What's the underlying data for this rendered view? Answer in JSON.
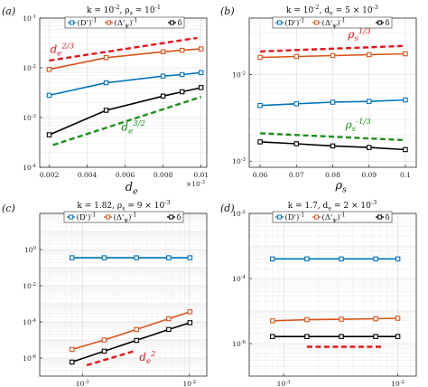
{
  "chart_data": [
    {
      "type": "line",
      "panel": "(a)",
      "title": "k = 10^{-2},  ρ_s = 10^{-1}",
      "xlabel": "d_e",
      "xscale": "linear",
      "yscale": "log",
      "xlim": [
        0.0015,
        0.0103
      ],
      "ylim": [
        0.0001,
        0.1
      ],
      "xticks": [
        "0.002",
        "0.004",
        "0.006",
        "0.008",
        "0.01"
      ],
      "x_exponent": "×10^{-3}",
      "yticks": [
        "10^{-4}",
        "10^{-3}",
        "10^{-2}",
        "10^{-1}"
      ],
      "legend": [
        "(D')^{-1}",
        "(Δ'_{ψ})^{-1}",
        "δ"
      ],
      "series": [
        {
          "name": "(D')^{-1}",
          "color": "#0072BD",
          "x": [
            0.002,
            0.005,
            0.008,
            0.009,
            0.01
          ],
          "y": [
            0.0028,
            0.005,
            0.0068,
            0.0073,
            0.008
          ]
        },
        {
          "name": "(Δ'_{ψ})^{-1}",
          "color": "#D95319",
          "x": [
            0.002,
            0.005,
            0.008,
            0.009,
            0.01
          ],
          "y": [
            0.0093,
            0.016,
            0.021,
            0.0225,
            0.024
          ]
        },
        {
          "name": "δ",
          "color": "#000000",
          "x": [
            0.002,
            0.005,
            0.008,
            0.009,
            0.01
          ],
          "y": [
            0.00045,
            0.0014,
            0.0027,
            0.0033,
            0.004
          ]
        }
      ],
      "guides": [
        {
          "label": "d_e^{2/3}",
          "color": "#E8141C",
          "x": [
            0.002,
            0.0098
          ],
          "y": [
            0.014,
            0.04
          ],
          "label_x": 0.00205,
          "label_y": 0.02
        },
        {
          "label": "d_e^{3/2}",
          "color": "#1C8E1C",
          "x": [
            0.0022,
            0.01
          ],
          "y": [
            0.00028,
            0.0026
          ],
          "label_x": 0.0058,
          "label_y": 0.00055
        }
      ]
    },
    {
      "type": "line",
      "panel": "(b)",
      "title": "k = 10^{-2},  d_e = 5 × 10^{-3}",
      "xlabel": "ρ_s",
      "xscale": "linear",
      "yscale": "log",
      "xlim": [
        0.057,
        0.103
      ],
      "ylim": [
        0.00085,
        0.045
      ],
      "xticks": [
        "0.06",
        "0.07",
        "0.08",
        "0.09",
        "0.1"
      ],
      "yticks": [
        "10^{-3}",
        "10^{-2}"
      ],
      "legend": [
        "(D')^{-1}",
        "(Δ'_{ψ})^{-1}",
        "δ"
      ],
      "series": [
        {
          "name": "(D')^{-1}",
          "color": "#0072BD",
          "x": [
            0.06,
            0.07,
            0.08,
            0.09,
            0.1
          ],
          "y": [
            0.0044,
            0.0046,
            0.0048,
            0.0049,
            0.0051
          ]
        },
        {
          "name": "(Δ'_{ψ})^{-1}",
          "color": "#D95319",
          "x": [
            0.06,
            0.07,
            0.08,
            0.09,
            0.1
          ],
          "y": [
            0.0158,
            0.0162,
            0.0166,
            0.017,
            0.0174
          ]
        },
        {
          "name": "δ",
          "color": "#000000",
          "x": [
            0.06,
            0.07,
            0.08,
            0.09,
            0.1
          ],
          "y": [
            0.00167,
            0.00159,
            0.0015,
            0.00144,
            0.00136
          ]
        }
      ],
      "guides": [
        {
          "label": "ρ_s^{1/3}",
          "color": "#E8141C",
          "x": [
            0.06,
            0.1
          ],
          "y": [
            0.0185,
            0.0215
          ],
          "label_x": 0.0842,
          "label_y": 0.0265
        },
        {
          "label": "ρ_s^{-1/3}",
          "color": "#1C8E1C",
          "x": [
            0.06,
            0.1
          ],
          "y": [
            0.0021,
            0.00175
          ],
          "label_x": 0.0835,
          "label_y": 0.0024
        }
      ]
    },
    {
      "type": "line",
      "panel": "(c)",
      "title": "k = 1.82,  ρ_s = 9 × 10^{-3}",
      "xlabel": "d_e",
      "xscale": "log",
      "yscale": "log",
      "xlim": [
        0.0004,
        0.0145
      ],
      "ylim": [
        1e-07,
        100
      ],
      "xticks": [
        "10^{-3}",
        "10^{-2}"
      ],
      "yticks": [
        "10^{-6}",
        "10^{-4}",
        "10^{-2}",
        "10^{0}"
      ],
      "legend": [
        "(D')^{-1}",
        "(Δ'_{ψ})^{-1}",
        "δ"
      ],
      "series": [
        {
          "name": "(D')^{-1}",
          "color": "#0072BD",
          "x": [
            0.0008,
            0.0016,
            0.0032,
            0.0064,
            0.0101
          ],
          "y": [
            0.35,
            0.35,
            0.35,
            0.35,
            0.35
          ]
        },
        {
          "name": "(Δ'_{ψ})^{-1}",
          "color": "#D95319",
          "x": [
            0.0008,
            0.0016,
            0.0032,
            0.0064,
            0.0101
          ],
          "y": [
            3e-06,
            1e-05,
            3.8e-05,
            0.00015,
            0.00036
          ]
        },
        {
          "name": "δ",
          "color": "#000000",
          "x": [
            0.0008,
            0.0016,
            0.0032,
            0.0064,
            0.0101
          ],
          "y": [
            6e-07,
            2.4e-06,
            9.5e-06,
            3.8e-05,
            9e-05
          ]
        }
      ],
      "guides": [
        {
          "label": "d_e^{2}",
          "color": "#E8141C",
          "x": [
            0.0011,
            0.0031
          ],
          "y": [
            4e-07,
            2.5e-06
          ],
          "label_x": 0.0034,
          "label_y": 7e-07
        }
      ]
    },
    {
      "type": "line",
      "panel": "(d)",
      "title": "k = 1.7,  d_e = 2 × 10^{-3}",
      "xlabel": "ρ_s",
      "xscale": "log",
      "yscale": "log",
      "xlim": [
        0.0005,
        0.0145
      ],
      "ylim": [
        1e-07,
        0.01
      ],
      "xticks": [
        "10^{-3}",
        "10^{-2}"
      ],
      "yticks": [
        "10^{-6}",
        "10^{-4}",
        "10^{-2}"
      ],
      "legend": [
        "(D')^{-1}",
        "(Δ'_{ψ})^{-1}",
        "δ"
      ],
      "series": [
        {
          "name": "(D')^{-1}",
          "color": "#0072BD",
          "x": [
            0.0008,
            0.0016,
            0.0032,
            0.0064,
            0.01
          ],
          "y": [
            0.0004,
            0.0004,
            0.0004,
            0.0004,
            0.0004
          ]
        },
        {
          "name": "(Δ'_{ψ})^{-1}",
          "color": "#D95319",
          "x": [
            0.0008,
            0.0016,
            0.0032,
            0.0064,
            0.01
          ],
          "y": [
            5e-06,
            5.4e-06,
            5.6e-06,
            5.8e-06,
            6e-06
          ]
        },
        {
          "name": "δ",
          "color": "#000000",
          "x": [
            0.0008,
            0.0016,
            0.0032,
            0.0064,
            0.01
          ],
          "y": [
            1.65e-06,
            1.65e-06,
            1.65e-06,
            1.65e-06,
            1.65e-06
          ]
        }
      ],
      "guides": [
        {
          "label": "",
          "color": "#E8141C",
          "x": [
            0.0016,
            0.0072
          ],
          "y": [
            8e-07,
            8e-07
          ]
        }
      ]
    }
  ]
}
